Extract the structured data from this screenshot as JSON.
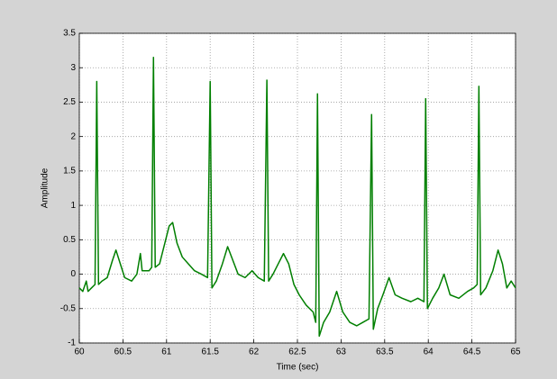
{
  "chart_data": {
    "type": "line",
    "x_label": "Time (sec)",
    "y_label": "Amplitude",
    "xlim": [
      60,
      65
    ],
    "ylim": [
      -1,
      3.5
    ],
    "xticks": [
      60,
      60.5,
      61,
      61.5,
      62,
      62.5,
      63,
      63.5,
      64,
      64.5,
      65
    ],
    "yticks": [
      -1,
      -0.5,
      0,
      0.5,
      1,
      1.5,
      2,
      2.5,
      3,
      3.5
    ],
    "grid": true,
    "x": [
      60.0,
      60.04,
      60.08,
      60.1,
      60.14,
      60.18,
      60.2,
      60.22,
      60.26,
      60.32,
      60.38,
      60.42,
      60.47,
      60.52,
      60.6,
      60.66,
      60.7,
      60.72,
      60.8,
      60.83,
      60.85,
      60.87,
      60.92,
      60.98,
      61.03,
      61.07,
      61.12,
      61.18,
      61.25,
      61.32,
      61.4,
      61.47,
      61.5,
      61.52,
      61.57,
      61.64,
      61.7,
      61.76,
      61.82,
      61.9,
      61.98,
      62.05,
      62.12,
      62.15,
      62.17,
      62.22,
      62.28,
      62.34,
      62.4,
      62.46,
      62.52,
      62.6,
      62.68,
      62.71,
      62.73,
      62.75,
      62.8,
      62.87,
      62.95,
      63.02,
      63.1,
      63.18,
      63.25,
      63.32,
      63.35,
      63.37,
      63.42,
      63.48,
      63.55,
      63.62,
      63.7,
      63.8,
      63.88,
      63.95,
      63.97,
      63.99,
      64.05,
      64.12,
      64.18,
      64.25,
      64.35,
      64.45,
      64.52,
      64.56,
      64.58,
      64.6,
      64.66,
      64.74,
      64.8,
      64.85,
      64.9,
      64.95,
      65.0
    ],
    "series": [
      {
        "color": "#007f00",
        "values": [
          -0.2,
          -0.25,
          -0.1,
          -0.25,
          -0.2,
          -0.15,
          2.8,
          -0.15,
          -0.1,
          -0.05,
          0.2,
          0.35,
          0.15,
          -0.05,
          -0.1,
          0.0,
          0.3,
          0.05,
          0.05,
          0.1,
          3.15,
          0.1,
          0.15,
          0.45,
          0.7,
          0.75,
          0.45,
          0.25,
          0.15,
          0.05,
          0.0,
          -0.05,
          2.8,
          -0.2,
          -0.1,
          0.15,
          0.4,
          0.2,
          0.0,
          -0.05,
          0.05,
          -0.05,
          -0.1,
          2.82,
          -0.1,
          0.0,
          0.15,
          0.3,
          0.15,
          -0.15,
          -0.3,
          -0.45,
          -0.55,
          -0.7,
          2.62,
          -0.9,
          -0.7,
          -0.55,
          -0.25,
          -0.55,
          -0.7,
          -0.75,
          -0.7,
          -0.65,
          2.32,
          -0.8,
          -0.5,
          -0.3,
          -0.05,
          -0.3,
          -0.35,
          -0.4,
          -0.35,
          -0.4,
          2.55,
          -0.5,
          -0.35,
          -0.2,
          0.0,
          -0.3,
          -0.35,
          -0.25,
          -0.2,
          -0.15,
          2.73,
          -0.3,
          -0.2,
          0.05,
          0.35,
          0.15,
          -0.2,
          -0.1,
          -0.2
        ]
      }
    ]
  }
}
